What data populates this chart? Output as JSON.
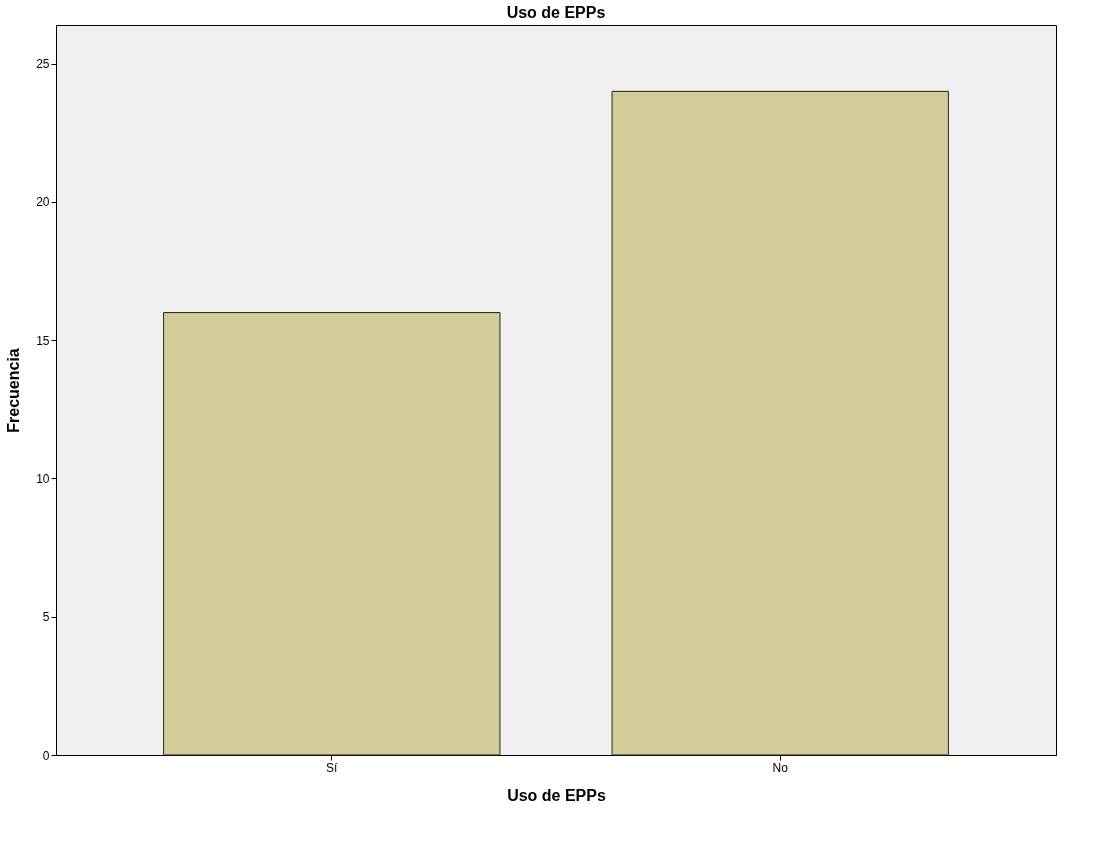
{
  "chart_data": {
    "type": "bar",
    "title": "Uso de EPPs",
    "xlabel": "Uso de EPPs",
    "ylabel": "Frecuencia",
    "categories": [
      "Sí",
      "No"
    ],
    "series": [
      {
        "color": "#d3ce98",
        "values": [
          16,
          24
        ]
      }
    ],
    "ylim": [
      0,
      26.4
    ],
    "yticks": [
      0,
      5,
      10,
      15,
      20,
      25
    ],
    "grid": false
  }
}
